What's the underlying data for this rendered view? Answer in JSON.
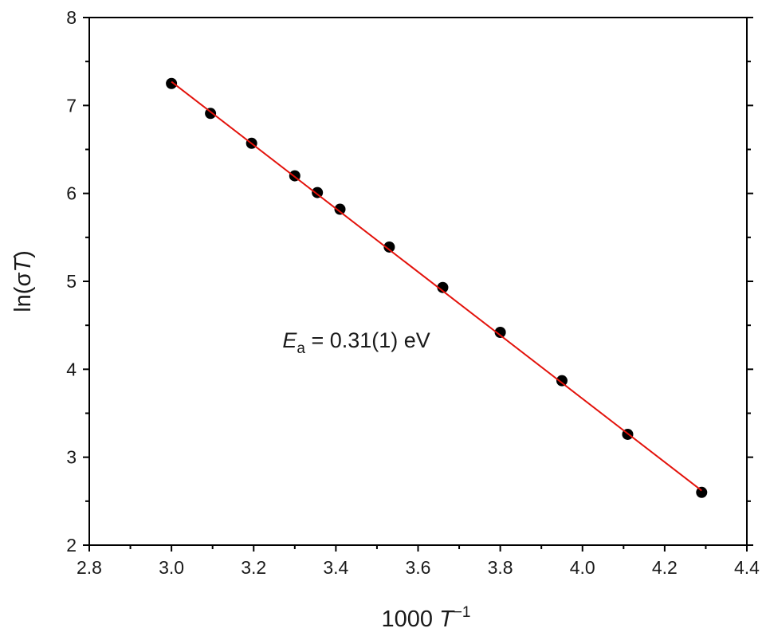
{
  "chart_data": {
    "type": "scatter",
    "xlabel": {
      "base": "1000 ",
      "var": "T",
      "sup": "−1"
    },
    "ylabel": {
      "prefix": "ln(σ",
      "var": "T",
      "suffix": ")"
    },
    "xlim": [
      2.8,
      4.4
    ],
    "ylim": [
      2,
      8
    ],
    "xticks": [
      2.8,
      3.0,
      3.2,
      3.4,
      3.6,
      3.8,
      4.0,
      4.2,
      4.4
    ],
    "yticks": [
      2,
      3,
      4,
      5,
      6,
      7,
      8
    ],
    "xtick_labels": [
      "2.8",
      "3.0",
      "3.2",
      "3.4",
      "3.6",
      "3.8",
      "4.0",
      "4.2",
      "4.4"
    ],
    "ytick_labels": [
      "2",
      "3",
      "4",
      "5",
      "6",
      "7",
      "8"
    ],
    "grid": false,
    "series": [
      {
        "type": "scatter",
        "color": "#000000",
        "x": [
          3.0,
          3.095,
          3.195,
          3.3,
          3.355,
          3.41,
          3.53,
          3.66,
          3.8,
          3.95,
          4.11,
          4.29
        ],
        "y": [
          7.25,
          6.91,
          6.57,
          6.2,
          6.01,
          5.82,
          5.39,
          4.93,
          4.42,
          3.87,
          3.26,
          2.6
        ]
      },
      {
        "type": "line",
        "color": "#e3120b",
        "x": [
          3.0,
          4.29
        ],
        "y": [
          7.27,
          2.62
        ]
      }
    ],
    "annotation": {
      "var": "E",
      "sub": "a",
      "rest": " = 0.31(1) eV",
      "x": 3.27,
      "y": 4.25
    }
  }
}
